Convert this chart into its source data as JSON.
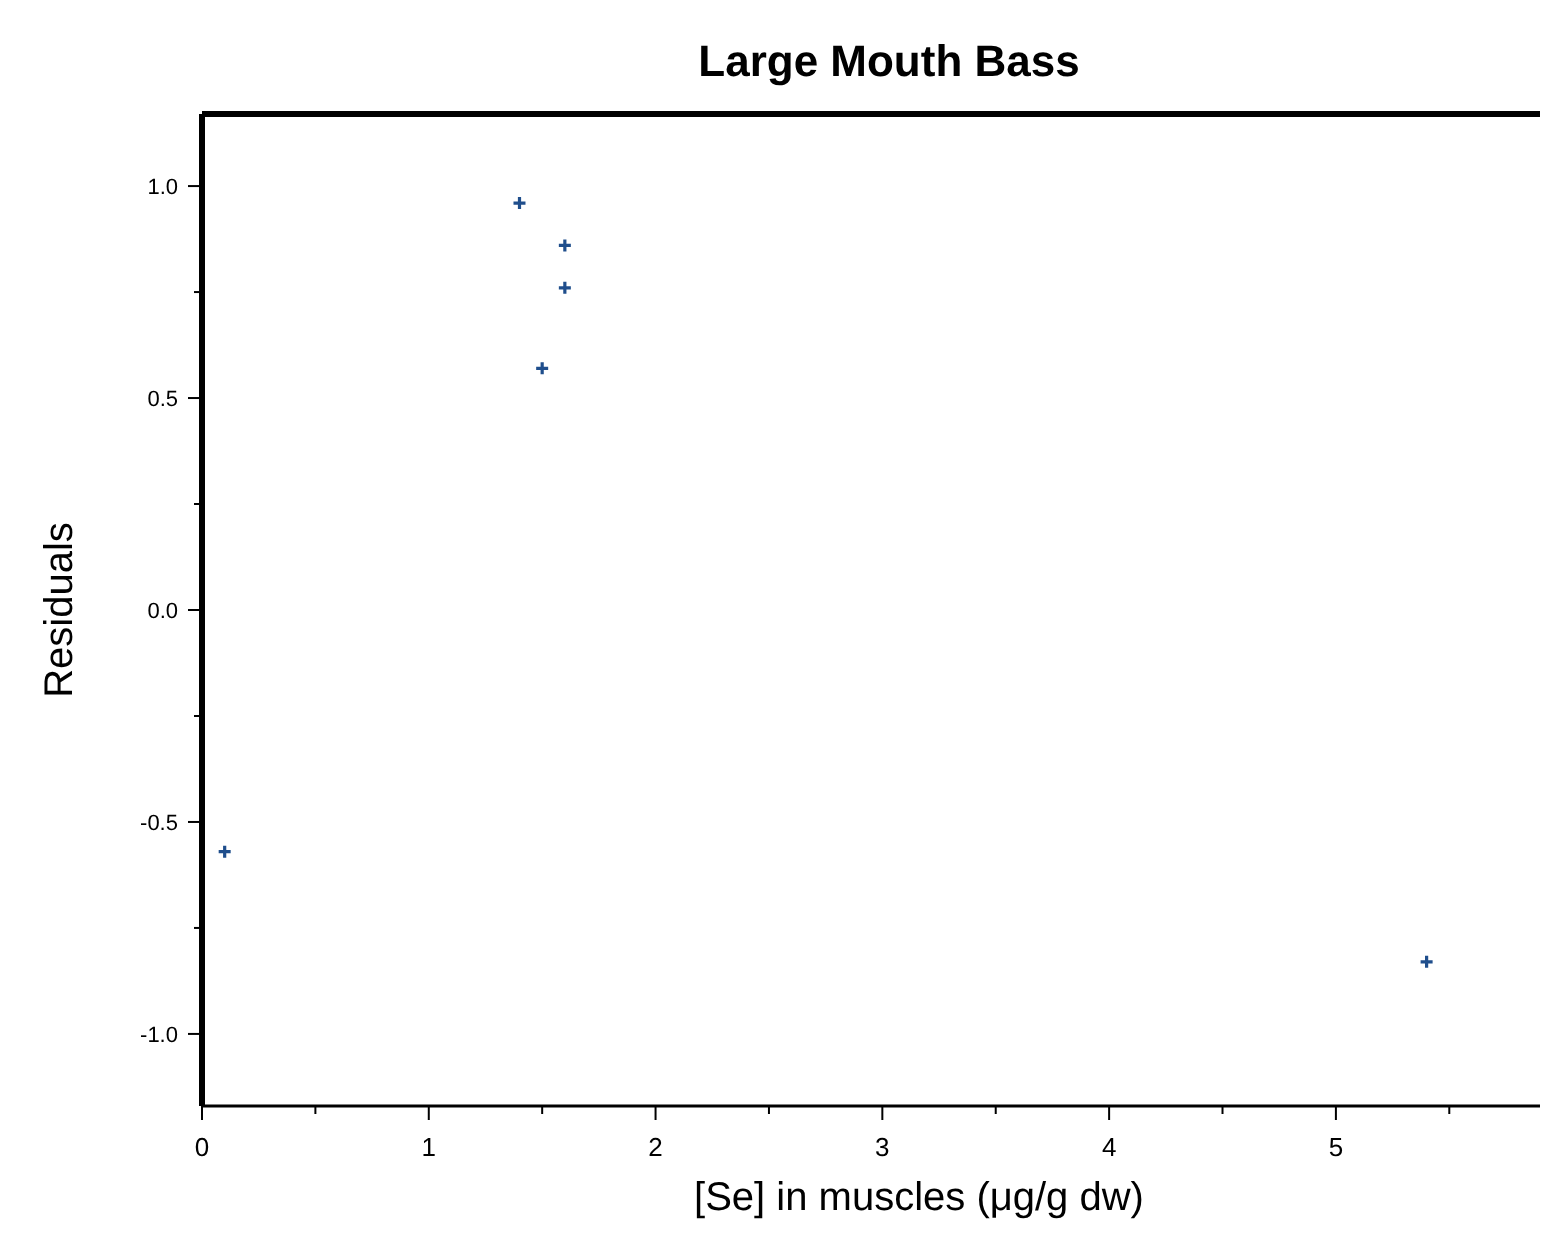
{
  "chart_data": {
    "type": "scatter",
    "title": "Large Mouth Bass",
    "xlabel": "[Se] in muscles (μg/g dw)",
    "ylabel": "Residuals",
    "x": [
      0.1,
      1.4,
      1.5,
      1.6,
      1.6,
      5.4
    ],
    "values": [
      -0.57,
      0.96,
      0.57,
      0.86,
      0.76,
      -0.83
    ],
    "color": "#1f4e8c",
    "marker": "cross",
    "grid": false,
    "xlim": [
      0,
      5.9
    ],
    "xticks": [
      0,
      {
        "value": 0.5,
        "label": null
      },
      1,
      {
        "value": 1.5,
        "label": null
      },
      2,
      {
        "value": 2.5,
        "label": null
      },
      3,
      {
        "value": 3.5,
        "label": null
      },
      4,
      {
        "value": 4.5,
        "label": null
      },
      5,
      {
        "value": 5.5,
        "label": null
      }
    ],
    "ylim": [
      -1.17,
      1.17
    ],
    "yticks": [
      {
        "value": -1,
        "label": "-1.0"
      },
      {
        "value": -0.75,
        "label": null
      },
      {
        "value": -0.5,
        "label": "-0.5"
      },
      {
        "value": -0.25,
        "label": null
      },
      {
        "value": 0,
        "label": "0.0"
      },
      {
        "value": 0.25,
        "label": null
      },
      {
        "value": 0.5,
        "label": "0.5"
      },
      {
        "value": 0.75,
        "label": null
      },
      {
        "value": 1,
        "label": "1.0"
      }
    ]
  }
}
